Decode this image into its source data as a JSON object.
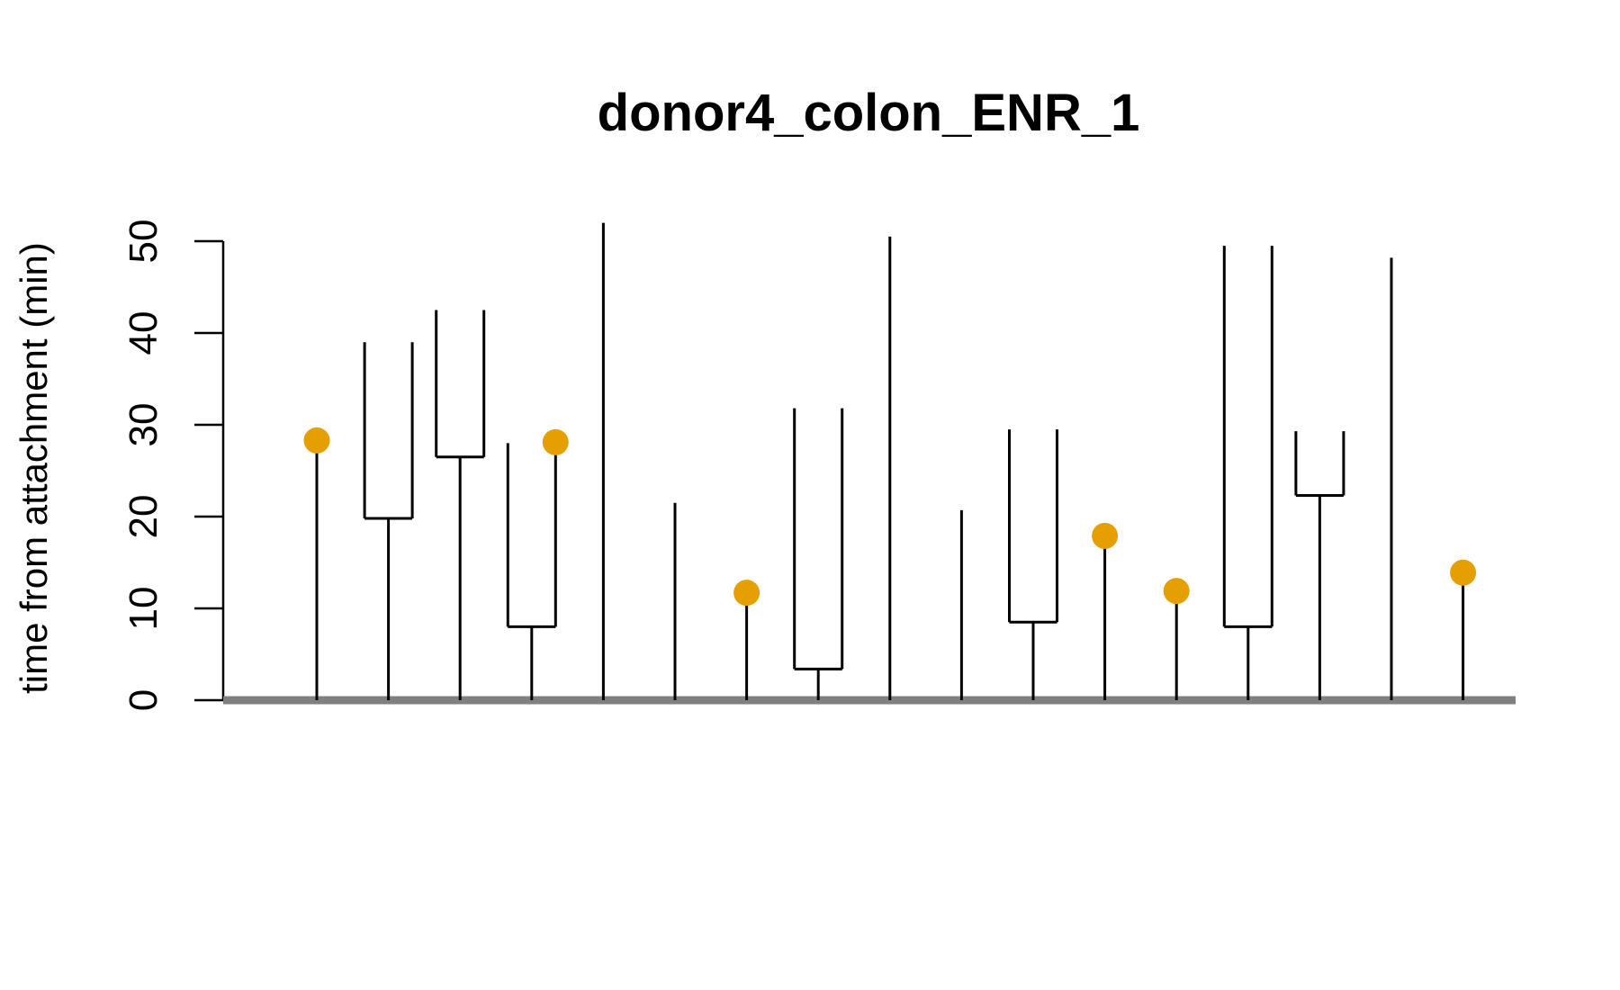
{
  "chart_data": {
    "type": "lineage-tree",
    "title": "donor4_colon_ENR_1",
    "ylabel": "time from attachment (min)",
    "xlabel": "",
    "ylim": [
      0,
      50
    ],
    "yticks": [
      "0",
      "10",
      "20",
      "30",
      "40",
      "50"
    ],
    "grid": false,
    "colors": {
      "line": "#000000",
      "baseline": "#808080",
      "marker": "#E69F00"
    },
    "trees": [
      {
        "x": 1,
        "kind": "single",
        "end": 28.3,
        "marker": true
      },
      {
        "x": 2,
        "kind": "split",
        "split": 19.8,
        "left": 39.0,
        "right": 39.0
      },
      {
        "x": 3,
        "kind": "split",
        "split": 26.5,
        "left": 42.5,
        "right": 42.5
      },
      {
        "x": 4,
        "kind": "split",
        "split": 8.0,
        "left": 28.0,
        "right": 28.1,
        "right_marker": true
      },
      {
        "x": 5,
        "kind": "single",
        "end": 52.0,
        "marker": false
      },
      {
        "x": 6,
        "kind": "single",
        "end": 21.5,
        "marker": false
      },
      {
        "x": 7,
        "kind": "single",
        "end": 11.7,
        "marker": true
      },
      {
        "x": 8,
        "kind": "split",
        "split": 3.4,
        "left": 31.8,
        "right": 31.8
      },
      {
        "x": 9,
        "kind": "single",
        "end": 50.5,
        "marker": false
      },
      {
        "x": 10,
        "kind": "single",
        "end": 20.7,
        "marker": false
      },
      {
        "x": 11,
        "kind": "split",
        "split": 8.5,
        "left": 29.5,
        "right": 29.5
      },
      {
        "x": 12,
        "kind": "single",
        "end": 17.9,
        "marker": true
      },
      {
        "x": 13,
        "kind": "single",
        "end": 11.9,
        "marker": true
      },
      {
        "x": 14,
        "kind": "split",
        "split": 8.0,
        "left": 49.5,
        "right": 49.5
      },
      {
        "x": 15,
        "kind": "split",
        "split": 22.3,
        "left": 29.3,
        "right": 29.3
      },
      {
        "x": 16,
        "kind": "single",
        "end": 48.2,
        "marker": false
      },
      {
        "x": 17,
        "kind": "single",
        "end": 13.9,
        "marker": true
      }
    ]
  }
}
